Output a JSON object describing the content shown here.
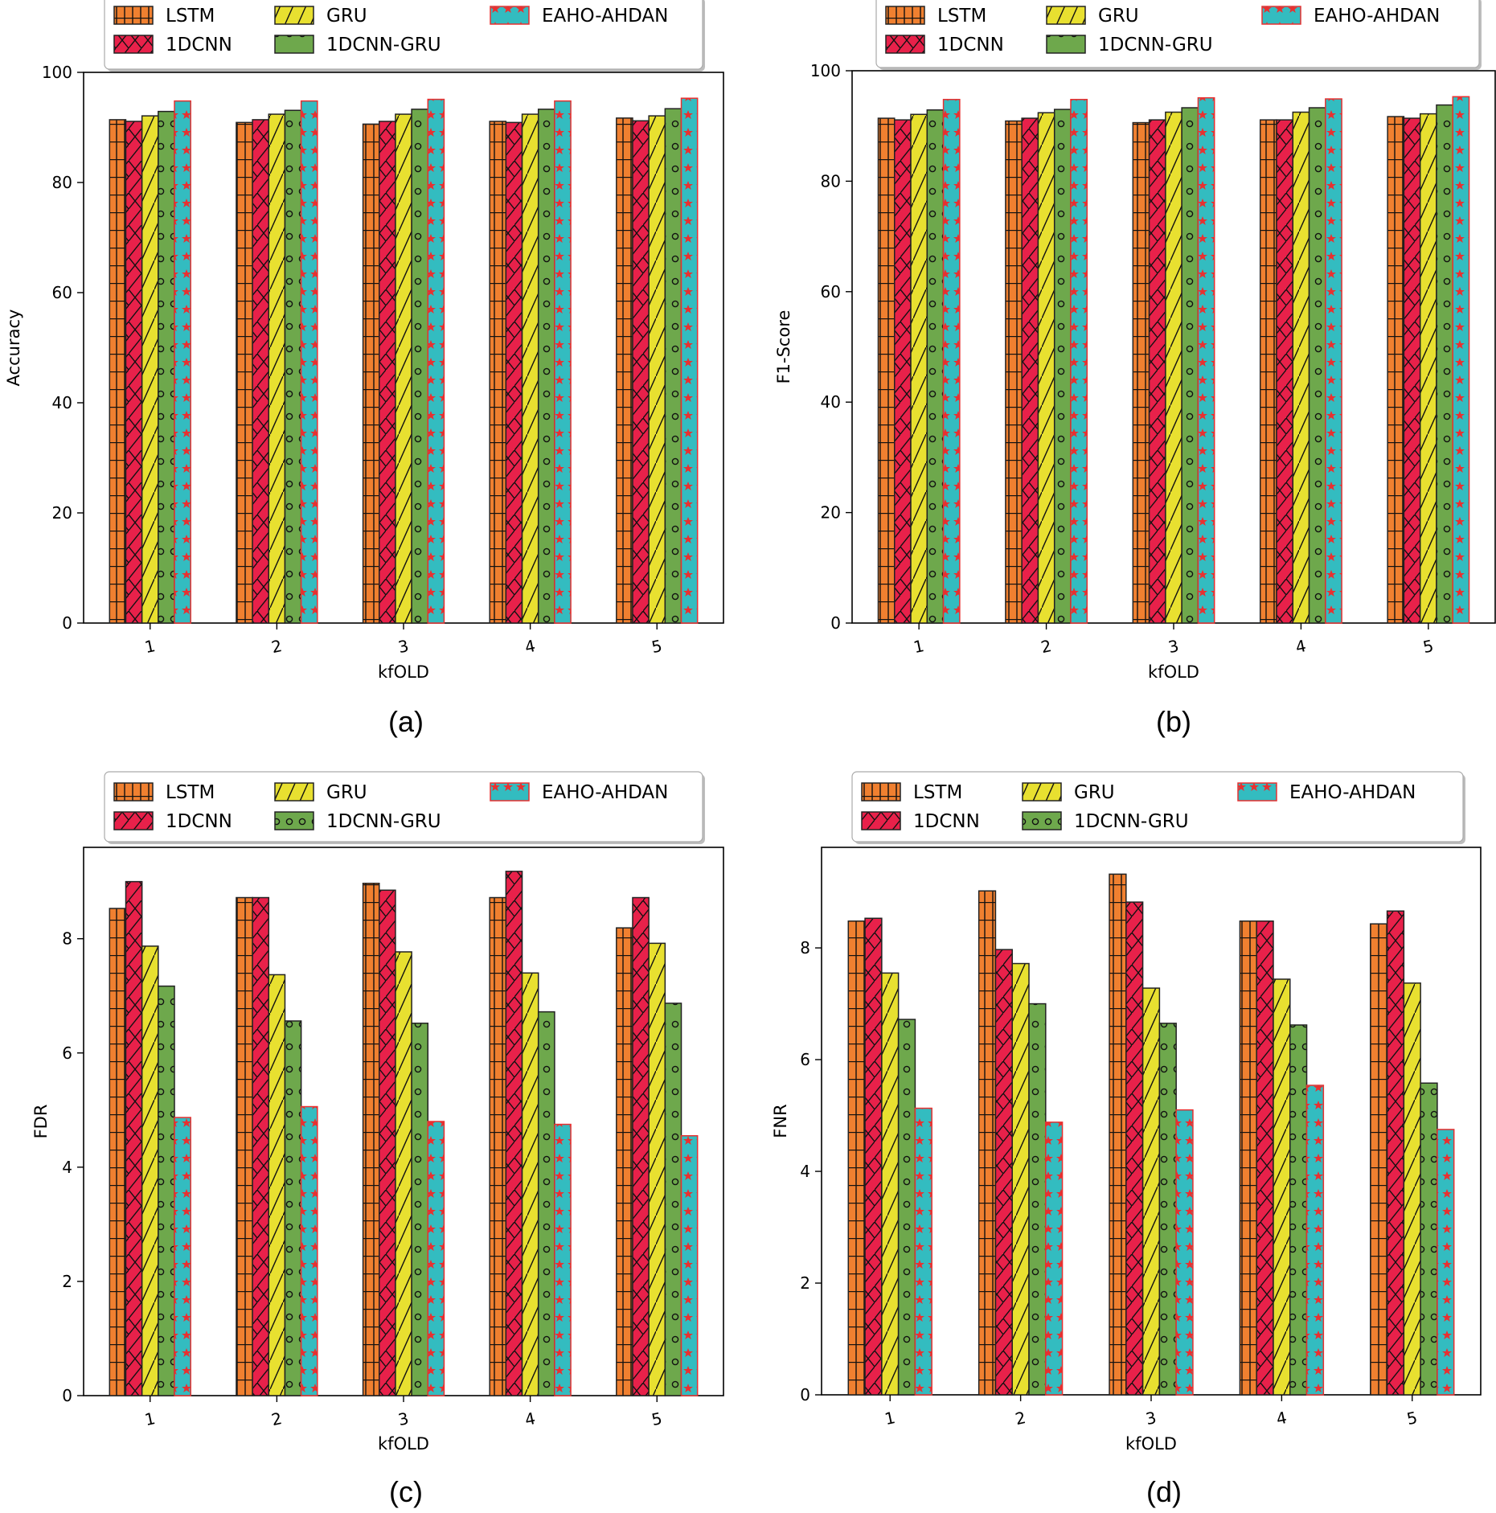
{
  "figure": {
    "subplot_captions": [
      "(a)",
      "(b)",
      "(c)",
      "(d)"
    ]
  },
  "series_styles": [
    {
      "name": "LSTM",
      "fill": "#f08030",
      "edge": "#222222",
      "hatch": "grid"
    },
    {
      "name": "1DCNN",
      "fill": "#e8214a",
      "edge": "#222222",
      "hatch": "cross"
    },
    {
      "name": "GRU",
      "fill": "#e8e030",
      "edge": "#222222",
      "hatch": "slash"
    },
    {
      "name": "1DCNN-GRU",
      "fill": "#6ea84c",
      "edge": "#222222",
      "hatch": "circle"
    },
    {
      "name": "EAHO-AHDAN",
      "fill": "#33bcc0",
      "edge": "#e83030",
      "hatch": "star"
    }
  ],
  "chart_data": [
    {
      "type": "bar",
      "caption": "(a)",
      "title": "",
      "xlabel": "kfOLD",
      "ylabel": "Accuracy",
      "categories": [
        "1",
        "2",
        "3",
        "4",
        "5"
      ],
      "ylim": [
        0,
        100
      ],
      "yticks": [
        0,
        20,
        40,
        60,
        80,
        100
      ],
      "legend_position": "top",
      "series": [
        {
          "name": "LSTM",
          "values": [
            91.4,
            90.9,
            90.6,
            91.1,
            91.7
          ]
        },
        {
          "name": "1DCNN",
          "values": [
            91.1,
            91.4,
            91.1,
            90.9,
            91.2
          ]
        },
        {
          "name": "GRU",
          "values": [
            92.1,
            92.4,
            92.4,
            92.4,
            92.1
          ]
        },
        {
          "name": "1DCNN-GRU",
          "values": [
            92.9,
            93.1,
            93.3,
            93.3,
            93.4
          ]
        },
        {
          "name": "EAHO-AHDAN",
          "values": [
            94.8,
            94.8,
            95.1,
            94.8,
            95.3
          ]
        }
      ]
    },
    {
      "type": "bar",
      "caption": "(b)",
      "title": "",
      "xlabel": "kfOLD",
      "ylabel": "F1-Score",
      "categories": [
        "1",
        "2",
        "3",
        "4",
        "5"
      ],
      "ylim": [
        0,
        100
      ],
      "yticks": [
        0,
        20,
        40,
        60,
        80,
        100
      ],
      "legend_position": "top",
      "series": [
        {
          "name": "LSTM",
          "values": [
            91.4,
            90.9,
            90.6,
            91.1,
            91.7
          ]
        },
        {
          "name": "1DCNN",
          "values": [
            91.1,
            91.4,
            91.1,
            91.1,
            91.4
          ]
        },
        {
          "name": "GRU",
          "values": [
            92.1,
            92.4,
            92.5,
            92.5,
            92.2
          ]
        },
        {
          "name": "1DCNN-GRU",
          "values": [
            92.9,
            93.0,
            93.3,
            93.3,
            93.8
          ]
        },
        {
          "name": "EAHO-AHDAN",
          "values": [
            94.8,
            94.8,
            95.1,
            94.9,
            95.3
          ]
        }
      ]
    },
    {
      "type": "bar",
      "caption": "(c)",
      "title": "",
      "xlabel": "kfOLD",
      "ylabel": "FDR",
      "categories": [
        "1",
        "2",
        "3",
        "4",
        "5"
      ],
      "ylim": [
        0,
        9.6
      ],
      "yticks": [
        0,
        2,
        4,
        6,
        8
      ],
      "legend_position": "top",
      "series": [
        {
          "name": "LSTM",
          "values": [
            8.53,
            8.72,
            8.97,
            8.72,
            8.19
          ]
        },
        {
          "name": "1DCNN",
          "values": [
            9.0,
            8.72,
            8.85,
            9.18,
            8.72
          ]
        },
        {
          "name": "GRU",
          "values": [
            7.87,
            7.37,
            7.77,
            7.4,
            7.92
          ]
        },
        {
          "name": "1DCNN-GRU",
          "values": [
            7.17,
            6.56,
            6.52,
            6.72,
            6.87
          ]
        },
        {
          "name": "EAHO-AHDAN",
          "values": [
            4.87,
            5.06,
            4.8,
            4.75,
            4.55
          ]
        }
      ]
    },
    {
      "type": "bar",
      "caption": "(d)",
      "title": "",
      "xlabel": "kfOLD",
      "ylabel": "FNR",
      "categories": [
        "1",
        "2",
        "3",
        "4",
        "5"
      ],
      "ylim": [
        0,
        9.8
      ],
      "yticks": [
        0,
        2,
        4,
        6,
        8
      ],
      "legend_position": "top",
      "series": [
        {
          "name": "LSTM",
          "values": [
            8.48,
            9.02,
            9.32,
            8.48,
            8.43
          ]
        },
        {
          "name": "1DCNN",
          "values": [
            8.53,
            7.97,
            8.82,
            8.48,
            8.66
          ]
        },
        {
          "name": "GRU",
          "values": [
            7.55,
            7.72,
            7.28,
            7.44,
            7.37
          ]
        },
        {
          "name": "1DCNN-GRU",
          "values": [
            6.72,
            7.0,
            6.65,
            6.62,
            5.58
          ]
        },
        {
          "name": "EAHO-AHDAN",
          "values": [
            5.13,
            4.88,
            5.1,
            5.54,
            4.75
          ]
        }
      ]
    }
  ]
}
